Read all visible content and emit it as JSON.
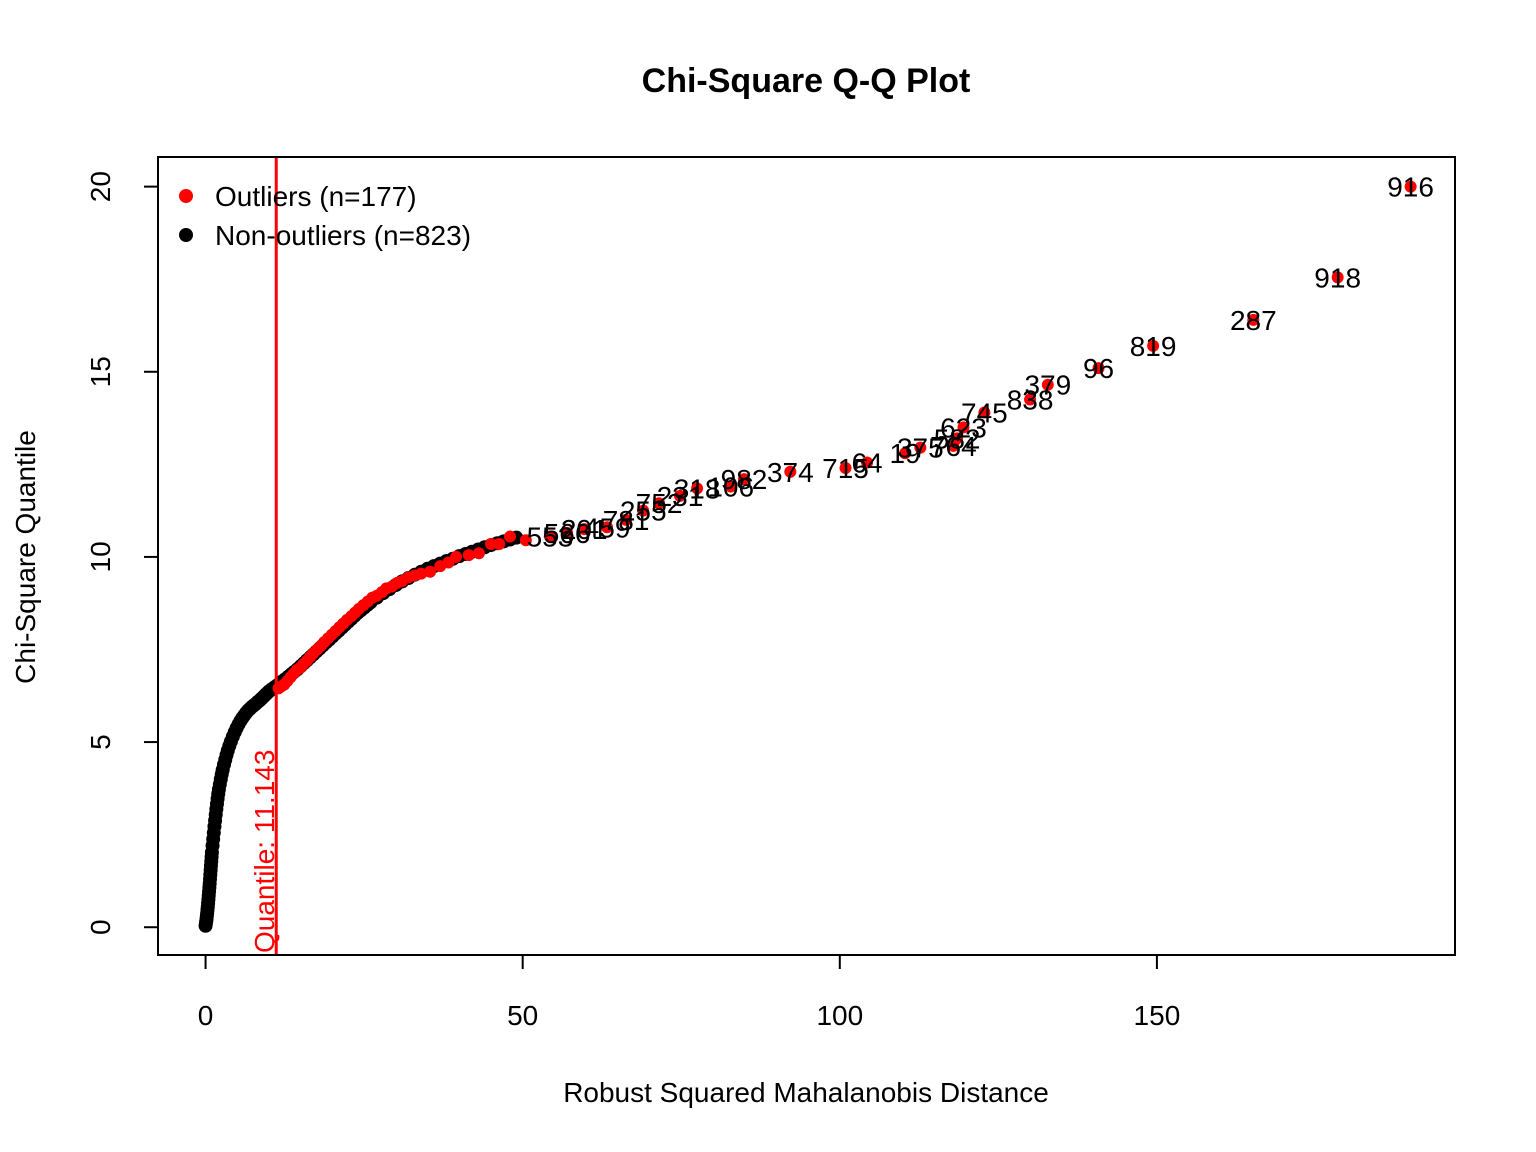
{
  "chart_data": {
    "type": "scatter",
    "title": "Chi-Square Q-Q Plot",
    "xlabel": "Robust Squared Mahalanobis Distance",
    "ylabel": "Chi-Square Quantile",
    "xlim": [
      -7.5,
      197
    ],
    "ylim": [
      -0.75,
      20.8
    ],
    "x_ticks": [
      0,
      50,
      100,
      150
    ],
    "y_ticks": [
      0,
      5,
      10,
      15,
      20
    ],
    "grid": false,
    "legend_position": "top-left",
    "legend": [
      {
        "label": "Outliers (n=177)",
        "color": "#ff0000"
      },
      {
        "label": "Non-outliers (n=823)",
        "color": "#000000"
      }
    ],
    "cutoff": {
      "x": 11.143,
      "label": "Quantile:  11.143",
      "color": "#ff0000"
    },
    "series": [
      {
        "name": "Outliers (n=177)",
        "color": "#ff0000",
        "labeled_points": [
          {
            "x": 190.0,
            "y": 20.0,
            "label": "916"
          },
          {
            "x": 178.5,
            "y": 17.55,
            "label": "918"
          },
          {
            "x": 165.2,
            "y": 16.4,
            "label": "287"
          },
          {
            "x": 149.4,
            "y": 15.7,
            "label": "819"
          },
          {
            "x": 140.8,
            "y": 15.1,
            "label": "96"
          },
          {
            "x": 132.8,
            "y": 14.65,
            "label": "379"
          },
          {
            "x": 130.0,
            "y": 14.25,
            "label": "838"
          },
          {
            "x": 122.8,
            "y": 13.9,
            "label": "745"
          },
          {
            "x": 119.5,
            "y": 13.5,
            "label": "623"
          },
          {
            "x": 118.5,
            "y": 13.2,
            "label": "582"
          },
          {
            "x": 117.9,
            "y": 13.0,
            "label": "764"
          },
          {
            "x": 112.7,
            "y": 12.95,
            "label": "375"
          },
          {
            "x": 110.3,
            "y": 12.8,
            "label": "19"
          },
          {
            "x": 104.3,
            "y": 12.55,
            "label": "64"
          },
          {
            "x": 100.9,
            "y": 12.4,
            "label": "715"
          },
          {
            "x": 92.2,
            "y": 12.3,
            "label": "374"
          },
          {
            "x": 84.9,
            "y": 12.1,
            "label": "982"
          },
          {
            "x": 82.8,
            "y": 11.9,
            "label": "106"
          },
          {
            "x": 77.5,
            "y": 11.85,
            "label": "318"
          },
          {
            "x": 74.8,
            "y": 11.65,
            "label": "231"
          },
          {
            "x": 71.5,
            "y": 11.45,
            "label": "752"
          },
          {
            "x": 69.0,
            "y": 11.25,
            "label": "255"
          },
          {
            "x": 66.3,
            "y": 11.0,
            "label": "781"
          },
          {
            "x": 63.3,
            "y": 10.8,
            "label": "459"
          },
          {
            "x": 59.7,
            "y": 10.75,
            "label": "201"
          },
          {
            "x": 57.0,
            "y": 10.65,
            "label": "566"
          },
          {
            "x": 54.3,
            "y": 10.55,
            "label": "553"
          }
        ],
        "other_points": [
          [
            50.5,
            10.45
          ],
          [
            48.0,
            10.55
          ],
          [
            46.3,
            10.35
          ],
          [
            45.0,
            10.35
          ],
          [
            43.1,
            10.1
          ],
          [
            41.5,
            10.05
          ],
          [
            39.5,
            10.0
          ],
          [
            38.3,
            9.85
          ],
          [
            37.0,
            9.75
          ],
          [
            35.4,
            9.6
          ],
          [
            34.0,
            9.55
          ],
          [
            33.0,
            9.5
          ],
          [
            32.0,
            9.45
          ],
          [
            31.0,
            9.35
          ],
          [
            30.2,
            9.3
          ],
          [
            29.4,
            9.2
          ],
          [
            28.5,
            9.15
          ],
          [
            27.8,
            9.05
          ],
          [
            27.0,
            8.95
          ],
          [
            26.3,
            8.9
          ],
          [
            25.6,
            8.8
          ],
          [
            24.9,
            8.7
          ],
          [
            24.2,
            8.6
          ],
          [
            23.6,
            8.5
          ],
          [
            23.0,
            8.4
          ],
          [
            22.3,
            8.3
          ],
          [
            21.7,
            8.2
          ],
          [
            21.1,
            8.1
          ],
          [
            20.5,
            8.0
          ],
          [
            19.9,
            7.9
          ],
          [
            19.3,
            7.8
          ],
          [
            18.7,
            7.7
          ],
          [
            18.2,
            7.6
          ],
          [
            17.6,
            7.5
          ],
          [
            17.0,
            7.4
          ],
          [
            16.5,
            7.3
          ],
          [
            16.0,
            7.2
          ],
          [
            15.4,
            7.1
          ],
          [
            14.9,
            7.0
          ],
          [
            14.4,
            6.95
          ],
          [
            13.9,
            6.85
          ],
          [
            13.4,
            6.75
          ],
          [
            12.9,
            6.65
          ],
          [
            12.4,
            6.55
          ],
          [
            11.9,
            6.5
          ],
          [
            11.5,
            6.45
          ]
        ]
      },
      {
        "name": "Non-outliers (n=823)",
        "color": "#000000",
        "points": [
          [
            0.0,
            0.04
          ],
          [
            0.05,
            0.1
          ],
          [
            0.1,
            0.16
          ],
          [
            0.15,
            0.22
          ],
          [
            0.2,
            0.3
          ],
          [
            0.25,
            0.38
          ],
          [
            0.3,
            0.47
          ],
          [
            0.35,
            0.55
          ],
          [
            0.4,
            0.65
          ],
          [
            0.45,
            0.75
          ],
          [
            0.5,
            0.85
          ],
          [
            0.55,
            0.96
          ],
          [
            0.6,
            1.07
          ],
          [
            0.65,
            1.18
          ],
          [
            0.7,
            1.3
          ],
          [
            0.75,
            1.42
          ],
          [
            0.8,
            1.54
          ],
          [
            0.85,
            1.66
          ],
          [
            0.9,
            1.78
          ],
          [
            0.95,
            1.9
          ],
          [
            1.0,
            2.02
          ],
          [
            1.1,
            2.2
          ],
          [
            1.2,
            2.38
          ],
          [
            1.3,
            2.55
          ],
          [
            1.4,
            2.72
          ],
          [
            1.5,
            2.88
          ],
          [
            1.6,
            3.04
          ],
          [
            1.7,
            3.19
          ],
          [
            1.8,
            3.33
          ],
          [
            1.9,
            3.47
          ],
          [
            2.0,
            3.6
          ],
          [
            2.1,
            3.72
          ],
          [
            2.25,
            3.86
          ],
          [
            2.4,
            4.0
          ],
          [
            2.55,
            4.13
          ],
          [
            2.7,
            4.25
          ],
          [
            2.9,
            4.39
          ],
          [
            3.1,
            4.52
          ],
          [
            3.3,
            4.65
          ],
          [
            3.5,
            4.77
          ],
          [
            3.75,
            4.9
          ],
          [
            4.0,
            5.02
          ],
          [
            4.3,
            5.15
          ],
          [
            4.6,
            5.27
          ],
          [
            4.9,
            5.38
          ],
          [
            5.2,
            5.48
          ],
          [
            5.5,
            5.57
          ],
          [
            5.8,
            5.65
          ],
          [
            6.1,
            5.72
          ],
          [
            6.4,
            5.79
          ],
          [
            6.7,
            5.85
          ],
          [
            7.0,
            5.9
          ],
          [
            7.3,
            5.95
          ],
          [
            7.6,
            5.99
          ],
          [
            7.9,
            6.03
          ],
          [
            8.2,
            6.08
          ],
          [
            8.5,
            6.12
          ],
          [
            8.8,
            6.17
          ],
          [
            9.1,
            6.22
          ],
          [
            9.4,
            6.27
          ],
          [
            9.7,
            6.32
          ],
          [
            10.0,
            6.37
          ],
          [
            10.4,
            6.42
          ],
          [
            10.8,
            6.47
          ],
          [
            11.2,
            6.52
          ],
          [
            11.6,
            6.57
          ],
          [
            12.0,
            6.63
          ],
          [
            12.5,
            6.69
          ],
          [
            13.0,
            6.76
          ],
          [
            13.5,
            6.83
          ],
          [
            14.0,
            6.9
          ],
          [
            14.5,
            6.97
          ],
          [
            15.0,
            7.05
          ],
          [
            15.5,
            7.13
          ],
          [
            16.0,
            7.21
          ],
          [
            16.5,
            7.29
          ],
          [
            17.0,
            7.37
          ],
          [
            17.5,
            7.45
          ],
          [
            18.0,
            7.53
          ],
          [
            18.5,
            7.61
          ],
          [
            19.0,
            7.69
          ],
          [
            19.5,
            7.77
          ],
          [
            20.0,
            7.85
          ],
          [
            20.5,
            7.93
          ],
          [
            21.0,
            8.01
          ],
          [
            21.5,
            8.09
          ],
          [
            22.0,
            8.17
          ],
          [
            22.5,
            8.25
          ],
          [
            23.0,
            8.33
          ],
          [
            23.5,
            8.41
          ],
          [
            24.0,
            8.49
          ],
          [
            24.5,
            8.56
          ],
          [
            25.0,
            8.63
          ],
          [
            25.5,
            8.7
          ],
          [
            26.0,
            8.77
          ],
          [
            27.0,
            8.9
          ],
          [
            28.0,
            9.02
          ],
          [
            29.0,
            9.13
          ],
          [
            30.0,
            9.24
          ],
          [
            31.0,
            9.34
          ],
          [
            32.0,
            9.43
          ],
          [
            33.0,
            9.52
          ],
          [
            34.0,
            9.6
          ],
          [
            35.0,
            9.68
          ],
          [
            36.0,
            9.75
          ],
          [
            37.0,
            9.82
          ],
          [
            38.0,
            9.89
          ],
          [
            39.0,
            9.95
          ],
          [
            40.0,
            10.02
          ],
          [
            41.0,
            10.08
          ],
          [
            42.0,
            10.14
          ],
          [
            43.0,
            10.2
          ],
          [
            44.0,
            10.26
          ],
          [
            45.0,
            10.32
          ],
          [
            46.0,
            10.37
          ],
          [
            47.0,
            10.42
          ],
          [
            48.0,
            10.47
          ],
          [
            49.0,
            10.52
          ]
        ]
      }
    ]
  }
}
